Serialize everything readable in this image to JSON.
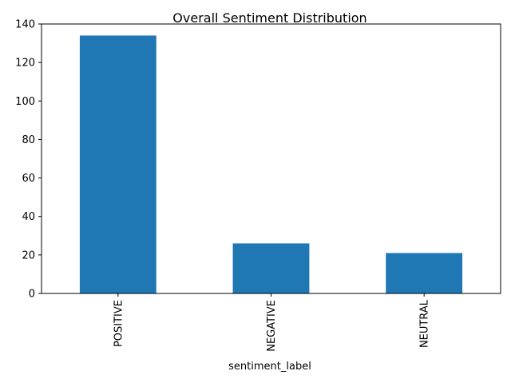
{
  "chart_data": {
    "type": "bar",
    "title": "Overall Sentiment Distribution",
    "xlabel": "sentiment_label",
    "ylabel": "",
    "categories": [
      "POSITIVE",
      "NEGATIVE",
      "NEUTRAL"
    ],
    "values": [
      134,
      26,
      21
    ],
    "ylim": [
      0,
      140
    ],
    "yticks": [
      0,
      20,
      40,
      60,
      80,
      100,
      120,
      140
    ],
    "bar_color": "#1f77b4",
    "grid": false,
    "legend": "none"
  }
}
